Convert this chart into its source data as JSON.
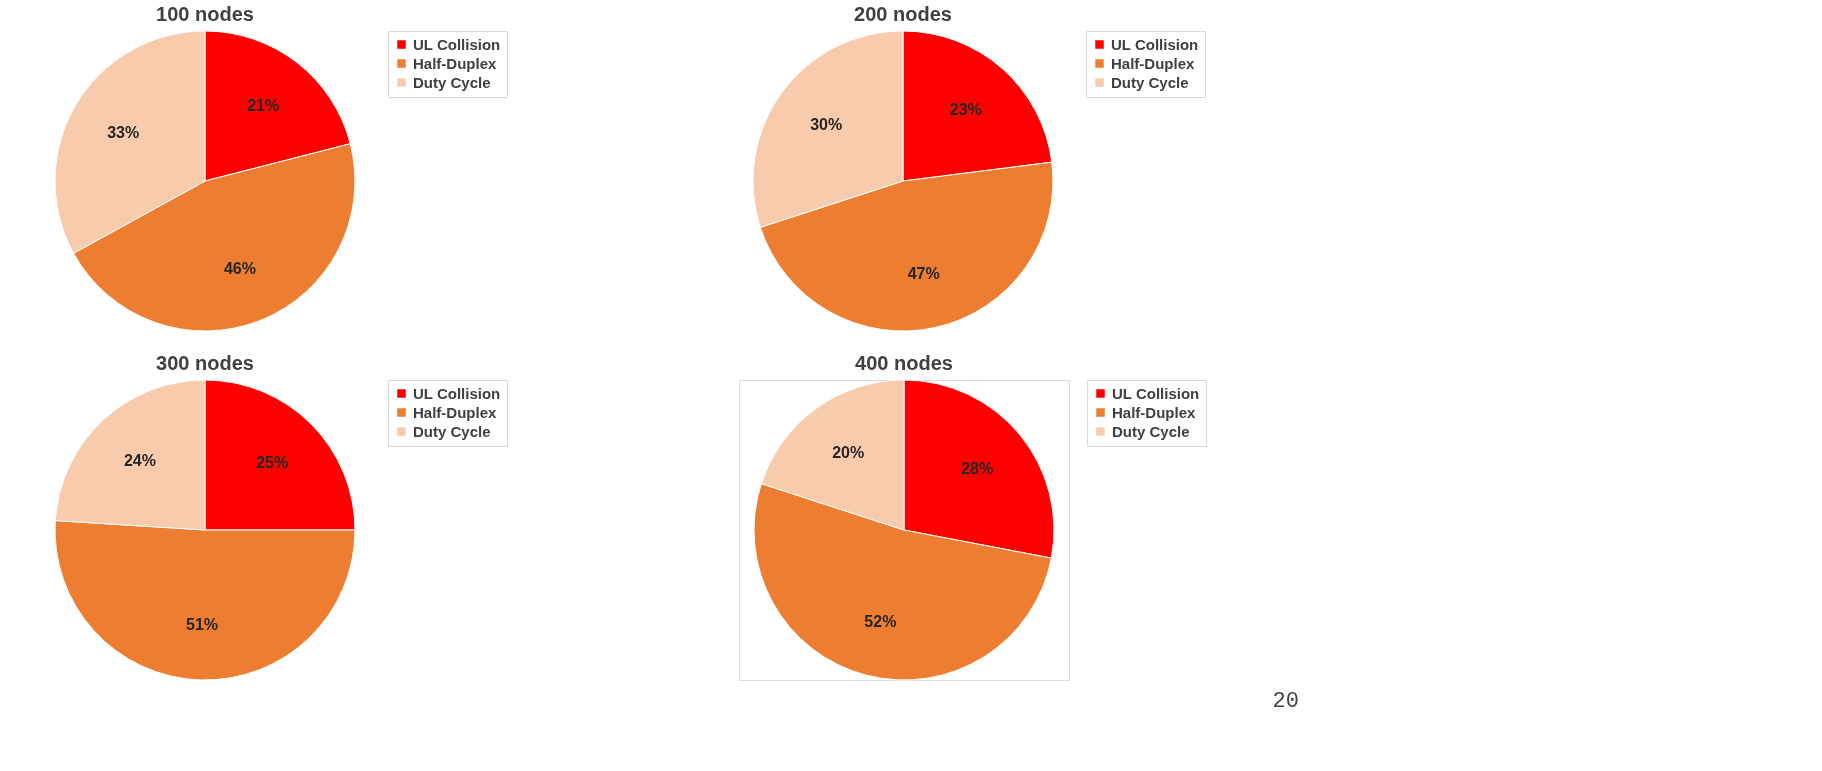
{
  "chart_data": [
    {
      "type": "pie",
      "title": "100 nodes",
      "categories": [
        "UL Collision",
        "Half-Duplex",
        "Duty Cycle"
      ],
      "values": [
        21,
        46,
        33
      ],
      "colors": [
        "#ff0000",
        "#ed7d31",
        "#f8cbad"
      ],
      "value_labels": [
        "21%",
        "46%",
        "33%"
      ],
      "legend": "right"
    },
    {
      "type": "pie",
      "title": "200 nodes",
      "categories": [
        "UL Collision",
        "Half-Duplex",
        "Duty Cycle"
      ],
      "values": [
        23,
        47,
        30
      ],
      "colors": [
        "#ff0000",
        "#ed7d31",
        "#f8cbad"
      ],
      "value_labels": [
        "23%",
        "47%",
        "30%"
      ],
      "legend": "right"
    },
    {
      "type": "pie",
      "title": "300 nodes",
      "categories": [
        "UL Collision",
        "Half-Duplex",
        "Duty Cycle"
      ],
      "values": [
        25,
        51,
        24
      ],
      "colors": [
        "#ff0000",
        "#ed7d31",
        "#f8cbad"
      ],
      "value_labels": [
        "25%",
        "51%",
        "24%"
      ],
      "legend": "right"
    },
    {
      "type": "pie",
      "title": "400 nodes",
      "categories": [
        "UL Collision",
        "Half-Duplex",
        "Duty Cycle"
      ],
      "values": [
        28,
        52,
        20
      ],
      "colors": [
        "#ff0000",
        "#ed7d31",
        "#f8cbad"
      ],
      "value_labels": [
        "28%",
        "52%",
        "20%"
      ],
      "legend": "right",
      "annotations": [
        "20"
      ]
    }
  ]
}
